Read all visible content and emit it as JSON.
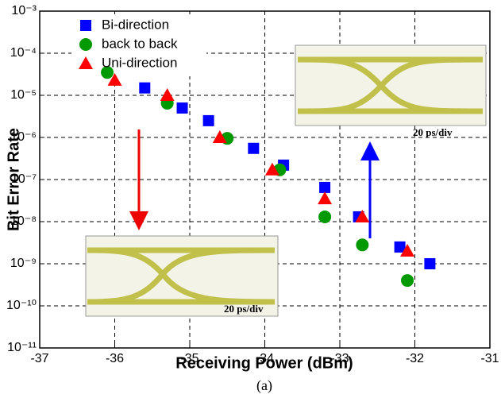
{
  "chart_data": {
    "type": "scatter",
    "x_label": "Receiving Power (dBm)",
    "y_label": "Bit Error Rate",
    "caption": "(a)",
    "annotations": [
      "20 ps/div",
      "20 ps/div"
    ],
    "log_y": true,
    "grid": true,
    "legend": "upper left",
    "xlim": [
      -37,
      -31
    ],
    "xticks": [
      -37,
      -36,
      -35,
      -34,
      -33,
      -32,
      -31
    ],
    "ylim": [
      1e-11,
      0.001
    ],
    "yticks": [
      {
        "value": 1e-11,
        "label": "10⁻¹¹"
      },
      {
        "value": 1e-10,
        "label": "10⁻¹⁰"
      },
      {
        "value": 1e-09,
        "label": "10⁻⁹"
      },
      {
        "value": 1e-08,
        "label": "10⁻⁸"
      },
      {
        "value": 1e-07,
        "label": "10⁻⁷"
      },
      {
        "value": 1e-06,
        "label": "10⁻⁶"
      },
      {
        "value": 1e-05,
        "label": "10⁻⁵"
      },
      {
        "value": 0.0001,
        "label": "10⁻⁴"
      },
      {
        "value": 0.001,
        "label": "10⁻³"
      }
    ],
    "series": [
      {
        "name": "Bi-direction",
        "color": "#0000ff",
        "marker": "square",
        "x": [
          -35.6,
          -35.1,
          -34.75,
          -34.15,
          -33.75,
          -33.2,
          -32.75,
          -32.2,
          -31.8
        ],
        "values": [
          1.5e-05,
          5e-06,
          2.5e-06,
          5.5e-07,
          2.2e-07,
          6.5e-08,
          1.3e-08,
          2.5e-09,
          1e-09
        ]
      },
      {
        "name": "back to back",
        "color": "#009900",
        "marker": "circle",
        "x": [
          -36.1,
          -35.3,
          -34.5,
          -33.8,
          -33.2,
          -32.7,
          -32.1
        ],
        "values": [
          3.5e-05,
          6.5e-06,
          9.5e-07,
          1.7e-07,
          1.3e-08,
          2.8e-09,
          4e-10
        ]
      },
      {
        "name": "Uni-direction",
        "color": "#ff0000",
        "marker": "triangle",
        "x": [
          -36.0,
          -35.3,
          -34.6,
          -33.9,
          -33.2,
          -32.7,
          -32.1
        ],
        "values": [
          2.3e-05,
          1e-05,
          1e-06,
          1.7e-07,
          3.5e-08,
          1.3e-08,
          2e-09
        ]
      }
    ]
  }
}
